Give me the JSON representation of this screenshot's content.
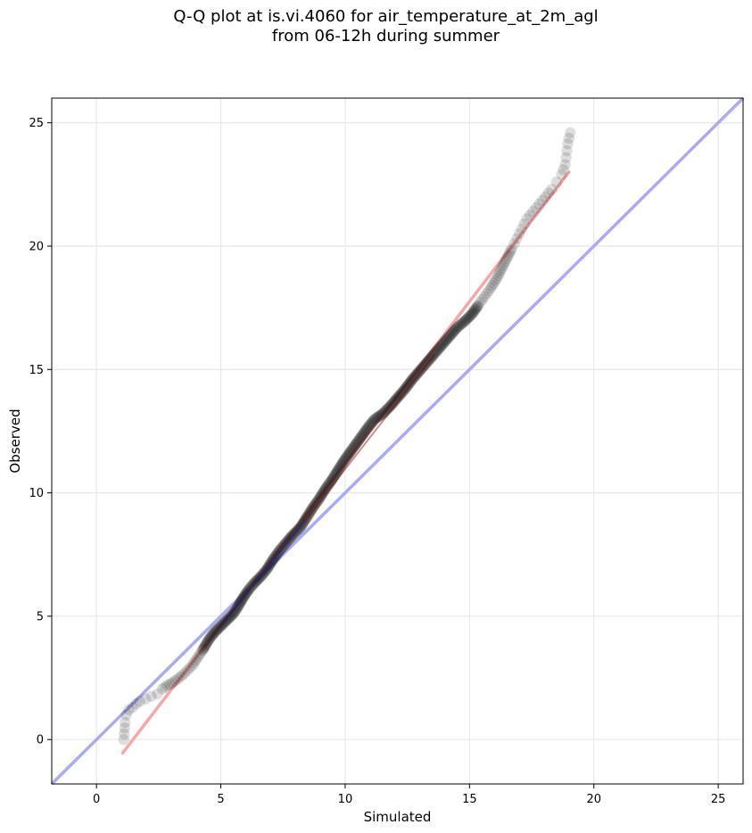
{
  "chart_data": {
    "type": "scatter",
    "title": "Q-Q plot at is.vi.4060 for air_temperature_at_2m_agl",
    "subtitle": "from 06-12h during summer",
    "xlabel": "Simulated",
    "ylabel": "Observed",
    "xlim": [
      -1.8,
      26
    ],
    "ylim": [
      -1.8,
      26
    ],
    "xticks": [
      0,
      5,
      10,
      15,
      20,
      25
    ],
    "yticks": [
      0,
      5,
      10,
      15,
      20,
      25
    ],
    "grid": true,
    "colors": {
      "identity_line": "#aaaaf5",
      "fit_line": "#f5a8a8",
      "points": "#000000",
      "fit_center": "#8b0000",
      "fit_center_low": "#1a1a8a"
    },
    "series": [
      {
        "kind": "quantile-points",
        "points": [
          [
            1.1,
            0.0
          ],
          [
            1.15,
            0.7
          ],
          [
            1.2,
            1.0
          ],
          [
            1.3,
            1.2
          ],
          [
            1.45,
            1.3
          ],
          [
            1.6,
            1.45
          ],
          [
            1.75,
            1.55
          ],
          [
            2.2,
            1.75
          ],
          [
            2.45,
            1.85
          ],
          [
            2.65,
            2.05
          ],
          [
            2.85,
            2.2
          ],
          [
            3.05,
            2.3
          ],
          [
            3.25,
            2.45
          ],
          [
            3.45,
            2.6
          ],
          [
            3.65,
            2.8
          ],
          [
            3.85,
            3.0
          ],
          [
            4.05,
            3.3
          ],
          [
            4.25,
            3.6
          ],
          [
            4.4,
            3.85
          ],
          [
            4.55,
            4.1
          ],
          [
            4.75,
            4.35
          ],
          [
            5.0,
            4.6
          ],
          [
            5.25,
            4.85
          ],
          [
            5.5,
            5.1
          ],
          [
            5.7,
            5.4
          ],
          [
            5.9,
            5.75
          ],
          [
            6.1,
            6.05
          ],
          [
            6.35,
            6.35
          ],
          [
            6.6,
            6.6
          ],
          [
            6.85,
            6.9
          ],
          [
            7.1,
            7.3
          ],
          [
            7.35,
            7.65
          ],
          [
            7.6,
            7.95
          ],
          [
            7.9,
            8.3
          ],
          [
            8.2,
            8.6
          ],
          [
            8.45,
            9.0
          ],
          [
            8.7,
            9.4
          ],
          [
            8.95,
            9.75
          ],
          [
            9.2,
            10.15
          ],
          [
            9.45,
            10.5
          ],
          [
            9.7,
            10.9
          ],
          [
            9.95,
            11.3
          ],
          [
            10.2,
            11.65
          ],
          [
            10.45,
            12.0
          ],
          [
            10.7,
            12.35
          ],
          [
            10.95,
            12.7
          ],
          [
            11.2,
            13.0
          ],
          [
            11.5,
            13.2
          ],
          [
            11.8,
            13.5
          ],
          [
            12.1,
            13.85
          ],
          [
            12.4,
            14.2
          ],
          [
            12.7,
            14.6
          ],
          [
            13.0,
            14.95
          ],
          [
            13.3,
            15.3
          ],
          [
            13.6,
            15.65
          ],
          [
            13.9,
            16.0
          ],
          [
            14.2,
            16.35
          ],
          [
            14.5,
            16.7
          ],
          [
            14.8,
            16.95
          ],
          [
            15.1,
            17.25
          ],
          [
            15.35,
            17.6
          ],
          [
            15.6,
            17.95
          ],
          [
            15.85,
            18.3
          ],
          [
            16.1,
            18.7
          ],
          [
            16.3,
            19.1
          ],
          [
            16.5,
            19.5
          ],
          [
            16.7,
            19.9
          ],
          [
            16.9,
            20.3
          ],
          [
            17.1,
            20.7
          ],
          [
            17.3,
            21.1
          ],
          [
            17.55,
            21.4
          ],
          [
            17.8,
            21.7
          ],
          [
            18.05,
            22.0
          ],
          [
            18.3,
            22.3
          ],
          [
            18.5,
            22.6
          ],
          [
            18.7,
            22.9
          ],
          [
            18.85,
            23.3
          ],
          [
            18.95,
            24.15
          ],
          [
            19.05,
            24.6
          ]
        ]
      }
    ],
    "identity_line": {
      "from": [
        -1.8,
        -1.8
      ],
      "to": [
        26,
        26
      ]
    },
    "fit_line": {
      "from": [
        1.05,
        -0.55
      ],
      "to": [
        19.0,
        23.0
      ]
    }
  }
}
